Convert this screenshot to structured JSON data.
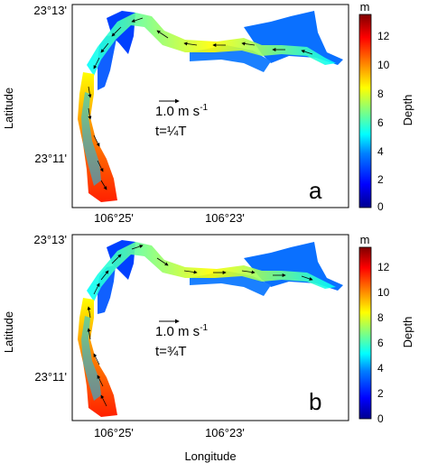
{
  "panels": [
    {
      "label": "a",
      "scale_text": "1.0 m s",
      "scale_exp": "-1",
      "time_text": "t=¼T",
      "y_ticks": [
        "23°13'",
        "23°11'"
      ],
      "x_ticks": [
        "106°25'",
        "106°23'"
      ],
      "ylabel": "Latitude",
      "colorbar": {
        "unit": "m",
        "label": "Depth",
        "ticks": [
          "0",
          "2",
          "4",
          "6",
          "8",
          "10",
          "12"
        ],
        "range": [
          0,
          13.5
        ]
      }
    },
    {
      "label": "b",
      "scale_text": "1.0 m s",
      "scale_exp": "-1",
      "time_text": "t=¾T",
      "y_ticks": [
        "23°13'",
        "23°11'"
      ],
      "x_ticks": [
        "106°25'",
        "106°23'"
      ],
      "ylabel": "Latitude",
      "colorbar": {
        "unit": "m",
        "label": "Depth",
        "ticks": [
          "0",
          "2",
          "4",
          "6",
          "8",
          "10",
          "12"
        ],
        "range": [
          0,
          13.5
        ]
      }
    }
  ],
  "xlabel": "Longitude",
  "colormap": [
    "#00008f",
    "#0000ff",
    "#0080ff",
    "#00ffff",
    "#80ff80",
    "#ffff00",
    "#ff8000",
    "#ff0000",
    "#800000"
  ]
}
